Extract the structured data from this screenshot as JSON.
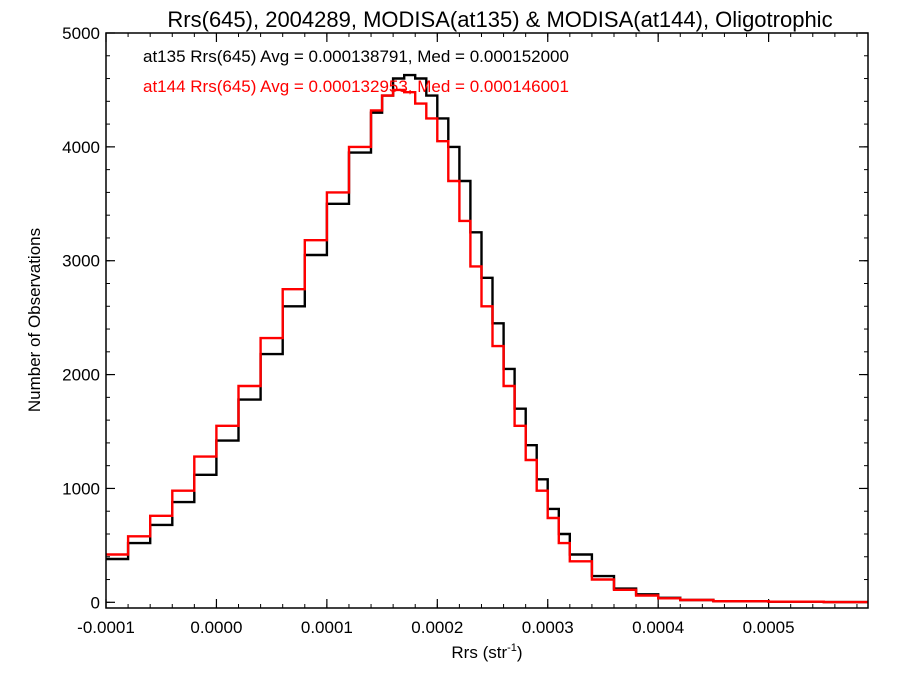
{
  "chart_data": {
    "type": "line",
    "title": "Rrs(645), 2004289, MODISA(at135) & MODISA(at144), Oligotrophic",
    "xlabel": "Rrs (str",
    "xlabel_sup": "-1",
    "xlabel_close": ")",
    "ylabel": "Number of Observations",
    "xlim": [
      -0.0001,
      0.00059
    ],
    "ylim": [
      -50,
      5000
    ],
    "x_ticks": [
      -0.0001,
      0.0,
      0.0001,
      0.0002,
      0.0003,
      0.0004,
      0.0005
    ],
    "x_tick_labels": [
      "-0.0001",
      "0.0000",
      "0.0001",
      "0.0002",
      "0.0003",
      "0.0004",
      "0.0005"
    ],
    "y_ticks": [
      0,
      1000,
      2000,
      3000,
      4000,
      5000
    ],
    "y_tick_labels": [
      "0",
      "1000",
      "2000",
      "3000",
      "4000",
      "5000"
    ],
    "grid": false,
    "legend_position": "top-left",
    "series": [
      {
        "name": "at135",
        "legend_text": "at135 Rrs(645) Avg = 0.000138791, Med = 0.000152000",
        "color": "#000000",
        "x": [
          -0.0001,
          -8e-05,
          -6e-05,
          -4e-05,
          -2e-05,
          0.0,
          2e-05,
          4e-05,
          6e-05,
          8e-05,
          0.0001,
          0.00012,
          0.00014,
          0.00015,
          0.00016,
          0.00017,
          0.00018,
          0.00019,
          0.0002,
          0.00021,
          0.00022,
          0.00023,
          0.00024,
          0.00025,
          0.00026,
          0.00027,
          0.00028,
          0.00029,
          0.0003,
          0.00031,
          0.00032,
          0.00034,
          0.00036,
          0.00038,
          0.0004,
          0.00042,
          0.00045,
          0.0005,
          0.00055,
          0.00059
        ],
        "y": [
          380,
          520,
          680,
          880,
          1120,
          1420,
          1780,
          2180,
          2600,
          3050,
          3500,
          3950,
          4300,
          4450,
          4600,
          4630,
          4600,
          4450,
          4250,
          4000,
          3700,
          3250,
          2850,
          2450,
          2050,
          1700,
          1380,
          1080,
          820,
          600,
          420,
          230,
          120,
          70,
          40,
          20,
          10,
          5,
          2,
          0
        ]
      },
      {
        "name": "at144",
        "legend_text": "at144 Rrs(645) Avg = 0.000132953, Med = 0.000146001",
        "color": "#ff0000",
        "x": [
          -0.0001,
          -8e-05,
          -6e-05,
          -4e-05,
          -2e-05,
          0.0,
          2e-05,
          4e-05,
          6e-05,
          8e-05,
          0.0001,
          0.00012,
          0.00014,
          0.00015,
          0.00016,
          0.00017,
          0.00018,
          0.00019,
          0.0002,
          0.00021,
          0.00022,
          0.00023,
          0.00024,
          0.00025,
          0.00026,
          0.00027,
          0.00028,
          0.00029,
          0.0003,
          0.00031,
          0.00032,
          0.00034,
          0.00036,
          0.00038,
          0.0004,
          0.00042,
          0.00045,
          0.0005,
          0.00055,
          0.00059
        ],
        "y": [
          420,
          580,
          760,
          980,
          1280,
          1550,
          1900,
          2320,
          2750,
          3180,
          3600,
          4000,
          4320,
          4450,
          4500,
          4480,
          4380,
          4250,
          4050,
          3700,
          3350,
          2950,
          2600,
          2250,
          1900,
          1550,
          1250,
          980,
          740,
          520,
          360,
          200,
          110,
          60,
          35,
          20,
          10,
          5,
          2,
          0
        ]
      }
    ]
  }
}
